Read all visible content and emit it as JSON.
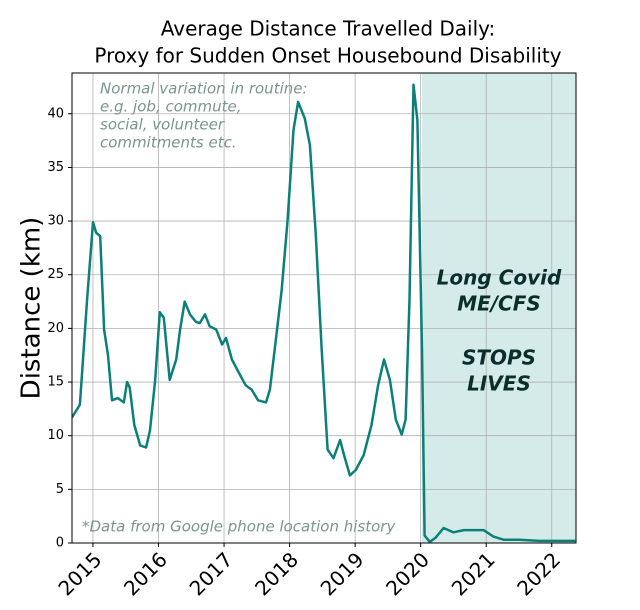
{
  "chart_data": {
    "type": "line",
    "title": [
      "Average Distance Travelled Daily:",
      "Proxy for Sudden Onset Housebound Disability"
    ],
    "ylabel": "Distance (km)",
    "xlim": [
      2014.68,
      2022.37
    ],
    "ylim": [
      0,
      43.8
    ],
    "xticks": [
      2015,
      2016,
      2017,
      2018,
      2019,
      2020,
      2021,
      2022
    ],
    "yticks": [
      0,
      5,
      10,
      15,
      20,
      25,
      30,
      35,
      40
    ],
    "grid": true,
    "shade": {
      "x": [
        2020.02,
        2022.37
      ],
      "color": "#d5ebe9"
    },
    "annotations": {
      "routine": [
        "Normal variation in routine:",
        "e.g. job, commute,",
        "social, volunteer",
        "commitments etc."
      ],
      "impact": [
        "Long Covid",
        "ME/CFS",
        "STOPS",
        "LIVES"
      ],
      "source": "*Data from Google phone location history"
    },
    "series": [
      {
        "color": "#0b8079",
        "x": [
          2014.68,
          2014.8,
          2014.91,
          2015.0,
          2015.05,
          2015.11,
          2015.17,
          2015.23,
          2015.29,
          2015.38,
          2015.47,
          2015.52,
          2015.56,
          2015.63,
          2015.72,
          2015.81,
          2015.87,
          2015.95,
          2016.02,
          2016.08,
          2016.17,
          2016.27,
          2016.33,
          2016.4,
          2016.48,
          2016.57,
          2016.63,
          2016.71,
          2016.78,
          2016.88,
          2016.97,
          2017.03,
          2017.12,
          2017.24,
          2017.33,
          2017.42,
          2017.52,
          2017.64,
          2017.7,
          2017.79,
          2017.88,
          2017.97,
          2018.06,
          2018.13,
          2018.23,
          2018.31,
          2018.4,
          2018.49,
          2018.58,
          2018.67,
          2018.77,
          2018.83,
          2018.92,
          2019.01,
          2019.13,
          2019.25,
          2019.35,
          2019.44,
          2019.53,
          2019.62,
          2019.71,
          2019.77,
          2019.83,
          2019.89,
          2019.95,
          2020.02,
          2020.06,
          2020.14,
          2020.23,
          2020.35,
          2020.5,
          2020.66,
          2020.81,
          2020.96,
          2021.11,
          2021.27,
          2021.51,
          2021.81,
          2022.12,
          2022.36
        ],
        "values": [
          11.7,
          12.9,
          22.7,
          29.9,
          28.9,
          28.6,
          19.9,
          17.5,
          13.3,
          13.5,
          13.1,
          15.0,
          14.5,
          11.0,
          9.1,
          8.9,
          10.5,
          15.2,
          21.5,
          21.0,
          15.2,
          17.1,
          19.9,
          22.5,
          21.3,
          20.6,
          20.5,
          21.3,
          20.2,
          19.9,
          18.5,
          19.1,
          17.1,
          15.7,
          14.7,
          14.3,
          13.3,
          13.1,
          14.3,
          18.9,
          23.6,
          30.1,
          38.5,
          41.1,
          39.6,
          37.1,
          28.7,
          18.0,
          8.7,
          7.9,
          9.6,
          8.2,
          6.3,
          6.8,
          8.2,
          11.0,
          14.7,
          17.1,
          15.2,
          11.5,
          10.1,
          11.5,
          22.7,
          42.7,
          39.4,
          18.0,
          0.7,
          0.1,
          0.5,
          1.4,
          1.0,
          1.2,
          1.2,
          1.2,
          0.6,
          0.3,
          0.3,
          0.2,
          0.2,
          0.2
        ]
      }
    ]
  }
}
